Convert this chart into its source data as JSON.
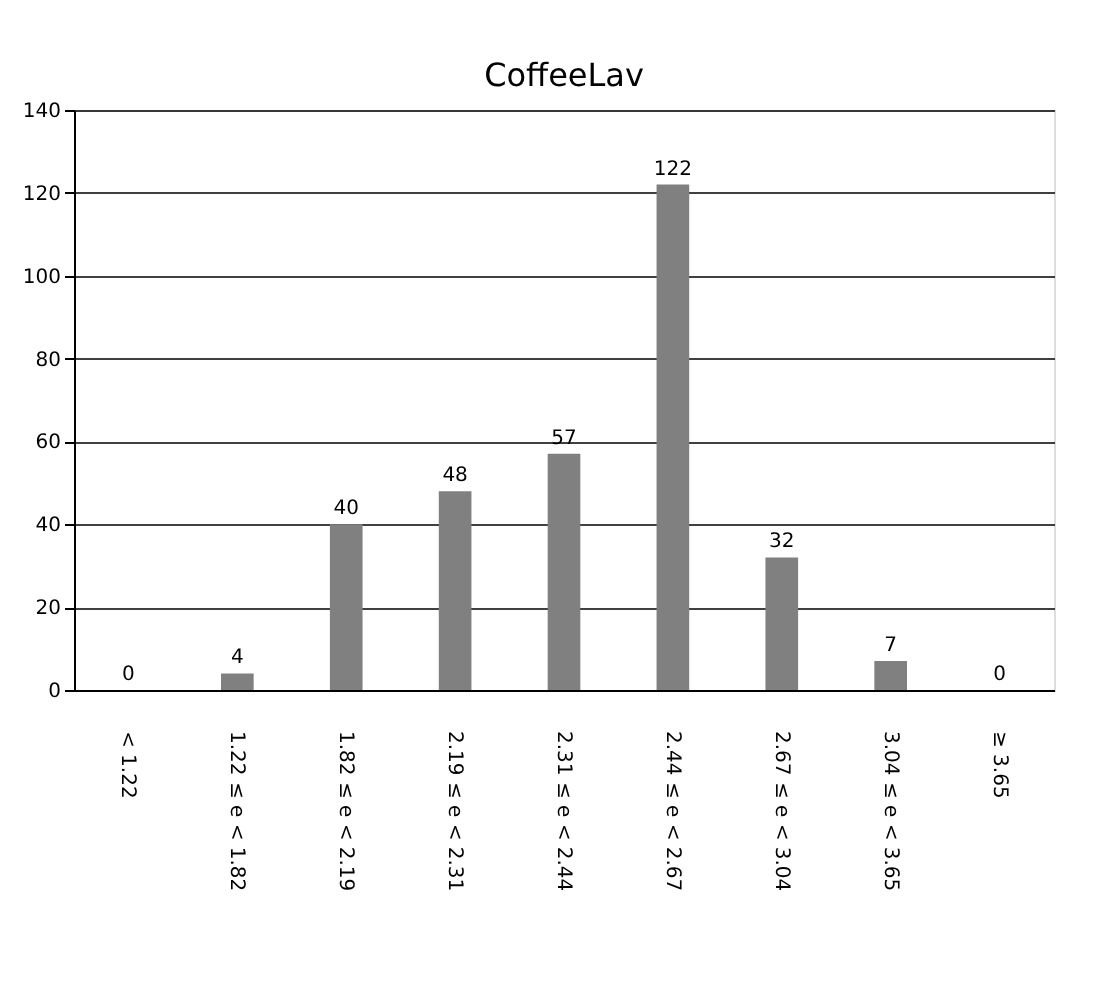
{
  "chart_data": {
    "type": "bar",
    "title": "CoffeeLav",
    "categories": [
      "< 1.22",
      "1.22 ≤ e < 1.82",
      "1.82 ≤ e < 2.19",
      "2.19 ≤ e < 2.31",
      "2.31 ≤ e < 2.44",
      "2.44 ≤ e < 2.67",
      "2.67 ≤ e < 3.04",
      "3.04 ≤ e < 3.65",
      "≥ 3.65"
    ],
    "values": [
      0,
      4,
      40,
      48,
      57,
      122,
      32,
      7,
      0
    ],
    "color": "#808080",
    "ylim": [
      0,
      140
    ],
    "yticks": [
      0,
      20,
      40,
      60,
      80,
      100,
      120,
      140
    ],
    "grid": "y",
    "data_labels": true
  }
}
